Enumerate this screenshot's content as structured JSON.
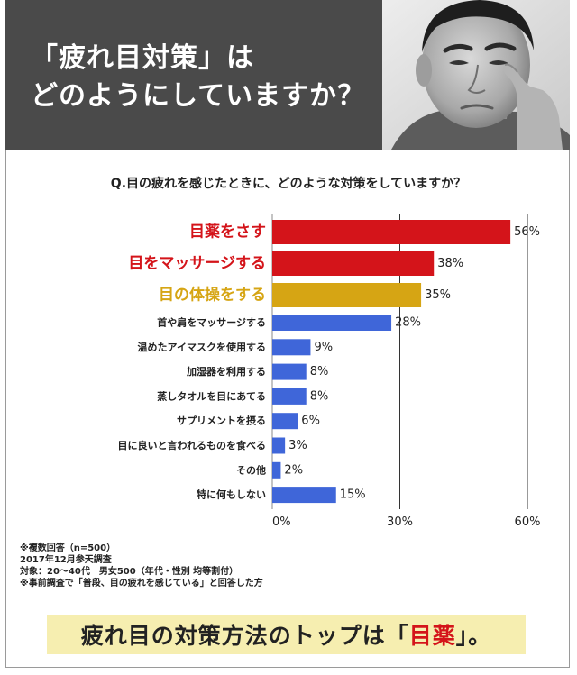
{
  "header": {
    "title_line1": "「疲れ目対策」は",
    "title_line2": "どのようにしていますか？"
  },
  "question": "Q.目の疲れを感じたときに、どのような対策をしていますか？",
  "chart_data": {
    "type": "bar",
    "orientation": "horizontal",
    "title": "",
    "xlabel": "",
    "ylabel": "",
    "xlim": [
      0,
      60
    ],
    "x_ticks": [
      "0%",
      "30%",
      "60%"
    ],
    "grid": true,
    "categories": [
      "目薬をさす",
      "目をマッサージする",
      "目の体操をする",
      "首や肩をマッサージする",
      "温めたアイマスクを使用する",
      "加湿器を利用する",
      "蒸しタオルを目にあてる",
      "サプリメントを摂る",
      "目に良いと言われるものを食べる",
      "その他",
      "特に何もしない"
    ],
    "values": [
      56,
      38,
      35,
      28,
      9,
      8,
      8,
      6,
      3,
      2,
      15
    ],
    "value_labels": [
      "56%",
      "38%",
      "35%",
      "28%",
      "9%",
      "8%",
      "8%",
      "6%",
      "3%",
      "2%",
      "15%"
    ],
    "bar_colors": [
      "#d4141a",
      "#d4141a",
      "#d6a514",
      "#3f66d9",
      "#3f66d9",
      "#3f66d9",
      "#3f66d9",
      "#3f66d9",
      "#3f66d9",
      "#3f66d9",
      "#3f66d9"
    ],
    "label_colors": [
      "#d4141a",
      "#d4141a",
      "#d6a514",
      "#222222",
      "#222222",
      "#222222",
      "#222222",
      "#222222",
      "#222222",
      "#222222",
      "#222222"
    ],
    "highlight_count": 3
  },
  "notes": [
    "※複数回答（n=500）",
    "2017年12月参天調査",
    "対象：20～40代　男女500（年代・性別 均等割付）",
    "※事前調査で「普段、目の疲れを感じている」と回答した方"
  ],
  "conclusion": {
    "prefix": "疲れ目の対策方法のトップは「",
    "highlight": "目薬",
    "suffix": "」。"
  },
  "colors": {
    "header_bg": "#4a4a4a",
    "accent_red": "#d4141a",
    "accent_gold": "#d6a514",
    "bar_blue": "#3f66d9",
    "conclusion_bg": "#f6eeb0"
  }
}
